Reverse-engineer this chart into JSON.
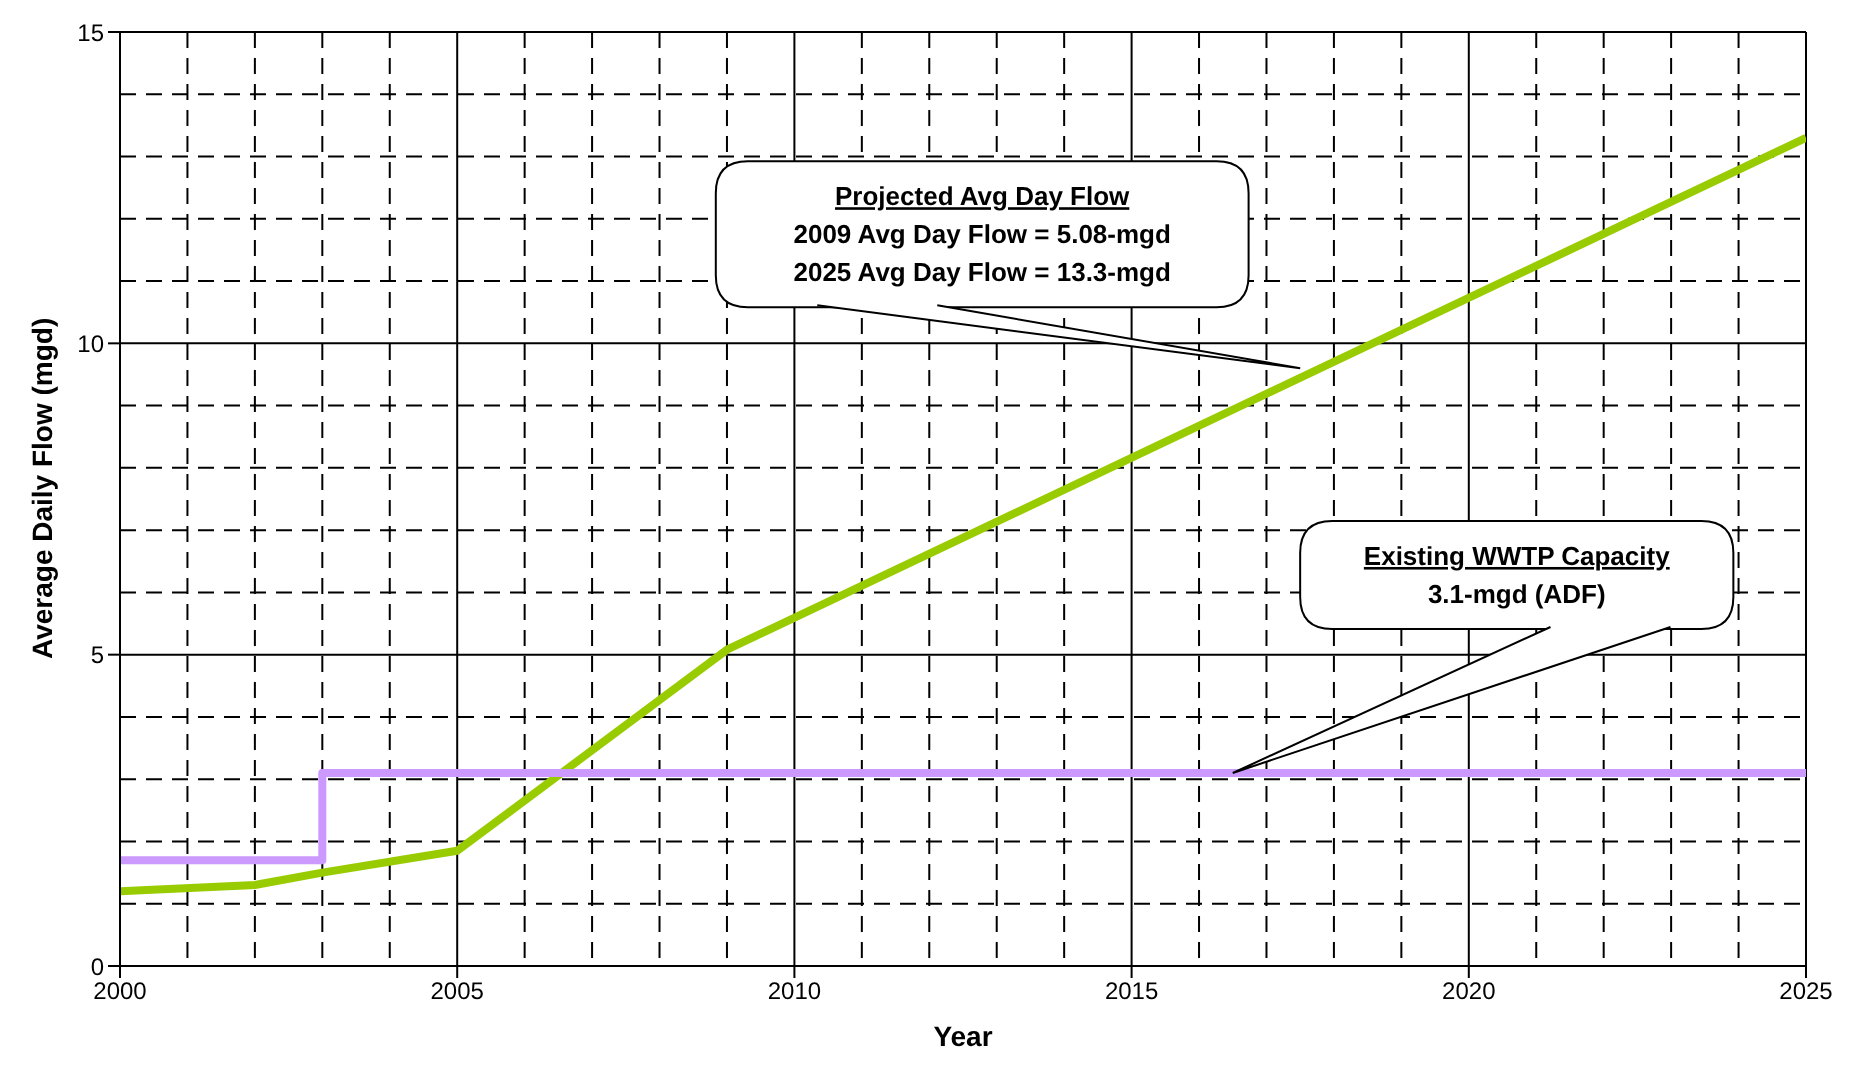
{
  "chart_data": {
    "type": "line",
    "xlabel": "Year",
    "ylabel": "Average Daily Flow (mgd)",
    "xlim": [
      2000,
      2025
    ],
    "xticks": [
      2000,
      2005,
      2010,
      2015,
      2020,
      2025
    ],
    "ylim": [
      0,
      15
    ],
    "yticks": [
      0,
      5,
      10,
      15
    ],
    "grid": true,
    "marker": "none",
    "line_style": "solid",
    "series": [
      {
        "color": "#99cc00",
        "x": [
          2000,
          2002,
          2003,
          2005,
          2009,
          2025
        ],
        "values": [
          1.2,
          1.3,
          1.5,
          1.85,
          5.08,
          13.3
        ]
      },
      {
        "type": "step",
        "color": "#cc99ff",
        "x": [
          2000,
          2003,
          2025
        ],
        "values": [
          1.7,
          3.1,
          3.1
        ]
      }
    ],
    "annotations": [
      {
        "text": "Projected Avg Day Flow\n2009 Avg Day Flow = 5.08-mgd\n2025 Avg Day Flow = 13.3-mgd",
        "x": 2017.5,
        "y": 9.6
      },
      {
        "text": "Existing WWTP Capacity\n3.1-mgd (ADF)",
        "x": 2016.5,
        "y": 3.1
      }
    ]
  }
}
